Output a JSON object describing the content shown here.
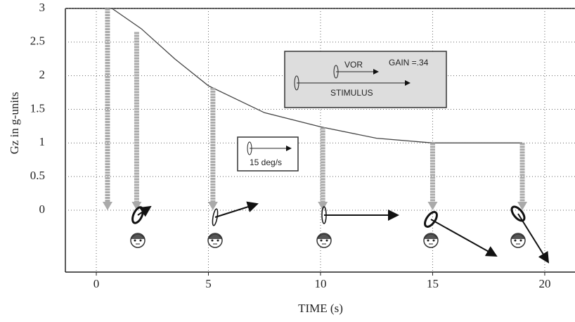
{
  "chart_data": {
    "type": "line",
    "y_label": "Gz in g-units",
    "x_label": "TIME (s)",
    "x": [
      0.7,
      2,
      3.5,
      5,
      7.5,
      10,
      12.5,
      15,
      19
    ],
    "values": [
      3,
      2.7,
      2.25,
      1.85,
      1.45,
      1.24,
      1.07,
      1.0,
      1.0
    ],
    "color": "#444",
    "events": {
      "x": [
        0.5,
        1.8,
        5.2,
        10.1,
        15,
        19
      ],
      "values": [
        3,
        2.65,
        1.82,
        1.23,
        1.0,
        1.0
      ],
      "color": "#aaa"
    },
    "xlim": [
      -1.38,
      21.35
    ],
    "ylim": [
      -0.92,
      3
    ],
    "xticks": [
      0,
      5,
      10,
      15,
      20
    ],
    "yticks": [
      3,
      2.5,
      2,
      1.5,
      1,
      0.5,
      0
    ],
    "grid": true,
    "inset_gain": {
      "vor": "VOR",
      "gain": "GAIN =.34",
      "stimulus": "STIMULUS"
    },
    "inset_scale": "15 deg/s"
  }
}
